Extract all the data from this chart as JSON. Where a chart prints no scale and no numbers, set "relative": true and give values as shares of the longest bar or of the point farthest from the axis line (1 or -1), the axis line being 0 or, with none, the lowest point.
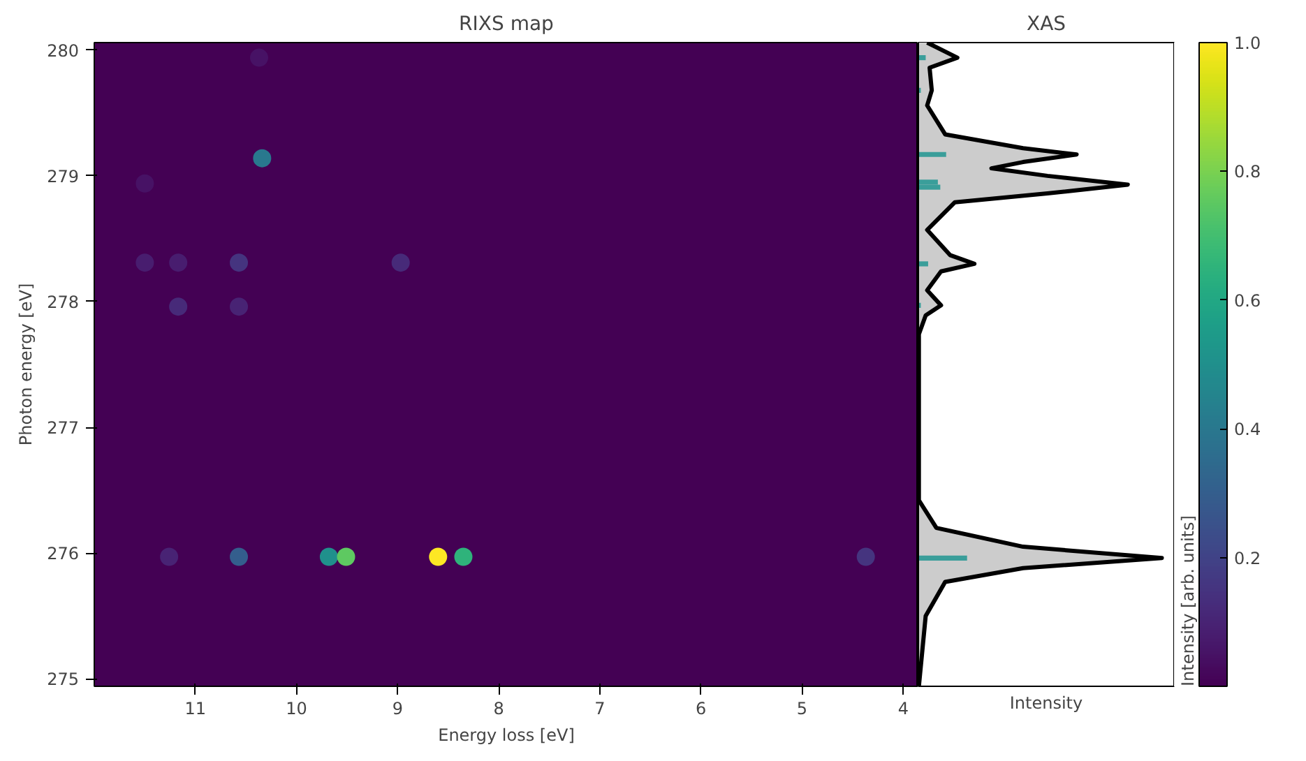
{
  "chart_data": [
    {
      "type": "scatter",
      "title": "RIXS map",
      "xlabel": "Energy loss [eV]",
      "ylabel": "Photon energy [eV]",
      "clabel": "Intensity [arb. units]",
      "marker": "circle",
      "grid": false,
      "xlim": [
        12,
        3.85
      ],
      "ylim": [
        274.94,
        280.06
      ],
      "xticks": [
        11,
        10,
        9,
        8,
        7,
        6,
        5,
        4
      ],
      "yticks": [
        275,
        276,
        277,
        278,
        279,
        280
      ],
      "clim": [
        0.0,
        1.0
      ],
      "cticks": [
        0.2,
        0.4,
        0.6,
        0.8,
        {
          "value": 1.0,
          "label": "1.0"
        }
      ],
      "x": [
        11.26,
        10.57,
        9.68,
        9.51,
        8.6,
        8.35,
        4.37,
        10.34,
        11.17,
        10.57,
        10.57,
        11.5,
        11.17,
        8.97,
        10.37,
        11.5
      ],
      "values": [
        275.97,
        275.97,
        275.97,
        275.97,
        275.97,
        275.97,
        275.97,
        279.14,
        277.96,
        277.96,
        278.31,
        278.31,
        278.31,
        278.31,
        279.94,
        278.94
      ],
      "cvalues": [
        0.1,
        0.3,
        0.5,
        0.75,
        1.0,
        0.65,
        0.15,
        0.4,
        0.12,
        0.1,
        0.15,
        0.08,
        0.08,
        0.12,
        0.05,
        0.05
      ]
    },
    {
      "type": "area",
      "title": "XAS",
      "xlabel": "Intensity",
      "orientation": "horizontal",
      "relative": true,
      "ylim": [
        274.94,
        280.06
      ],
      "series": [
        {
          "type": "area",
          "color": "#000000",
          "x": [
            280.06,
            279.94,
            279.86,
            279.68,
            279.56,
            279.33,
            279.22,
            279.17,
            279.11,
            279.06,
            279.0,
            278.93,
            278.86,
            278.79,
            278.57,
            278.37,
            278.3,
            278.24,
            278.09,
            277.97,
            277.89,
            277.74,
            276.42,
            276.2,
            276.05,
            275.96,
            275.88,
            275.77,
            275.5,
            274.94
          ],
          "values": [
            0.036,
            0.16,
            0.046,
            0.055,
            0.036,
            0.11,
            0.43,
            0.65,
            0.43,
            0.3,
            0.53,
            0.86,
            0.53,
            0.15,
            0.036,
            0.13,
            0.23,
            0.093,
            0.036,
            0.093,
            0.03,
            0.002,
            0.002,
            0.074,
            0.43,
            1.0,
            0.43,
            0.11,
            0.03,
            0.002
          ]
        },
        {
          "type": "bar",
          "color": "#3a9e9a",
          "x": [
            279.94,
            279.68,
            279.17,
            278.95,
            278.91,
            278.3,
            277.97,
            275.96
          ],
          "values": [
            0.03,
            0.01,
            0.114,
            0.08,
            0.09,
            0.04,
            0.01,
            0.2
          ]
        }
      ]
    }
  ]
}
